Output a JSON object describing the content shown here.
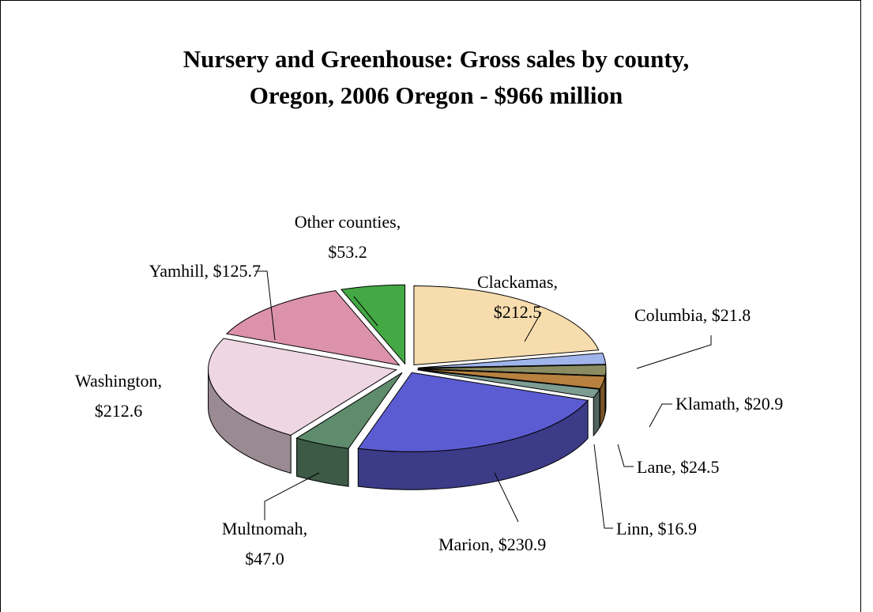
{
  "chart_data": {
    "type": "pie",
    "title": "Nursery and Greenhouse: Gross sales by county, Oregon, 2006 Oregon - $966 million",
    "values": [
      212.5,
      21.8,
      20.9,
      24.5,
      16.9,
      230.9,
      47.0,
      212.6,
      125.7,
      53.2
    ],
    "value_labels": [
      "Clackamas, $212.5",
      "Columbia, $21.8",
      "Klamath, $20.9",
      "Lane, $24.5",
      "Linn, $16.9",
      "Marion, $230.9",
      "Multnomah, $47.0",
      "Washington, $212.6",
      "Yamhill, $125.7",
      "Other counties, $53.2"
    ],
    "colors": [
      "#f7dcae",
      "#9fb4ea",
      "#8c8c62",
      "#b8813f",
      "#7d9c92",
      "#5c5cd2",
      "#5e8c6c",
      "#eed6e2",
      "#dc92aa",
      "#44a844"
    ]
  }
}
